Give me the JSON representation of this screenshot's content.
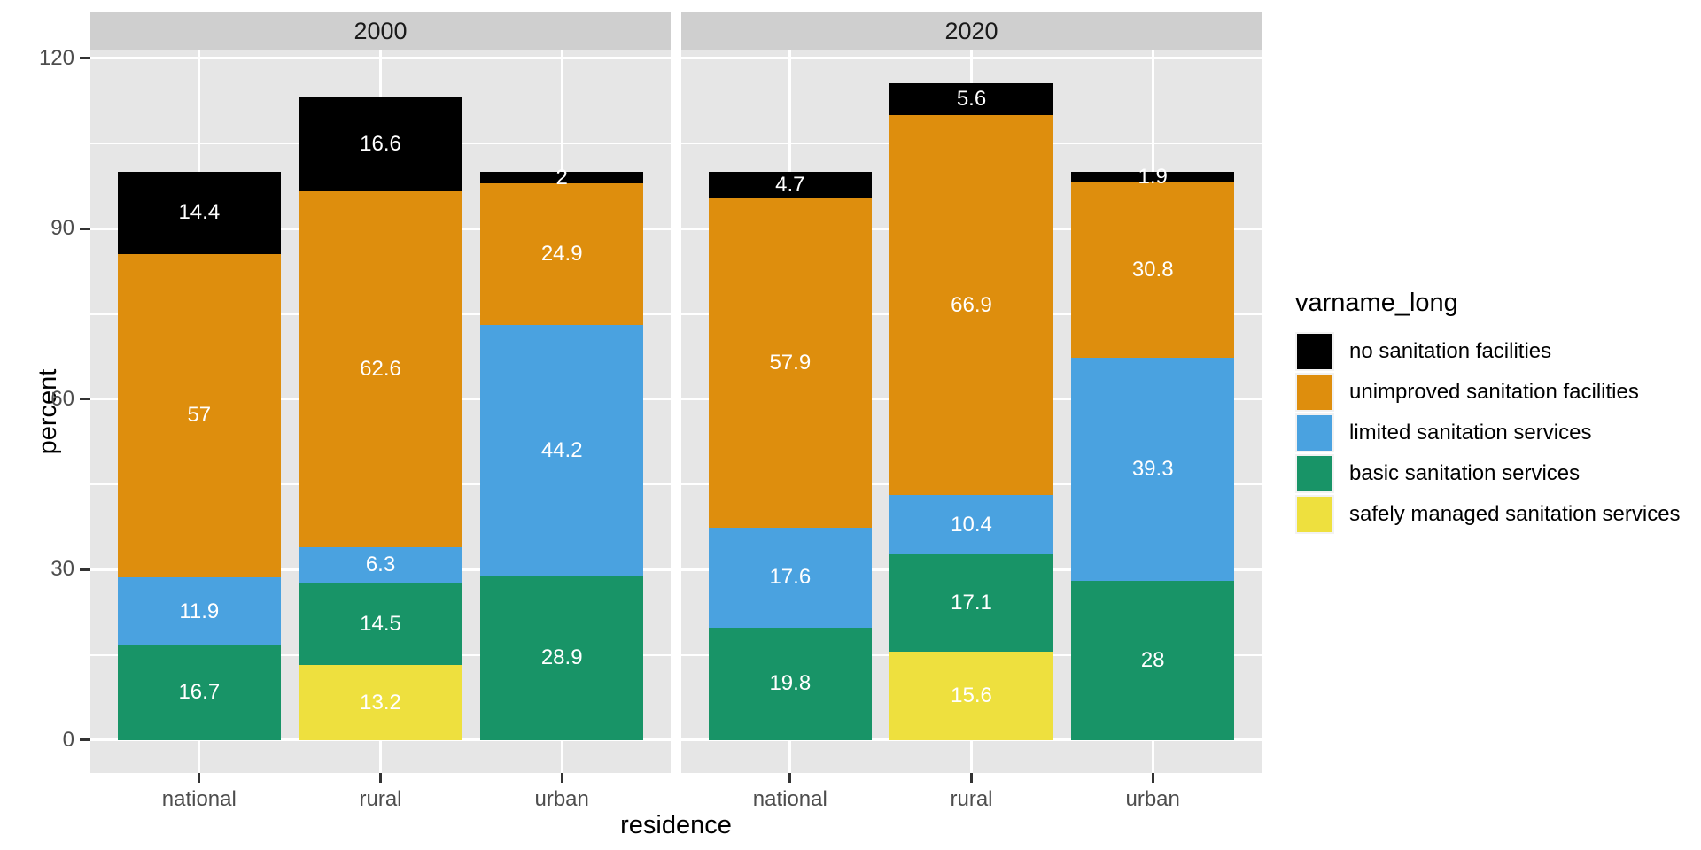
{
  "chart_data": {
    "type": "bar",
    "stacked": true,
    "facets": [
      "2000",
      "2020"
    ],
    "categories": [
      "national",
      "rural",
      "urban"
    ],
    "series": [
      {
        "name": "no sanitation facilities",
        "color": "#000000",
        "values": {
          "2000": [
            14.4,
            16.6,
            2
          ],
          "2020": [
            4.7,
            5.6,
            1.9
          ]
        }
      },
      {
        "name": "unimproved sanitation facilities",
        "color": "#de8e0d",
        "values": {
          "2000": [
            57,
            62.6,
            24.9
          ],
          "2020": [
            57.9,
            66.9,
            30.8
          ]
        }
      },
      {
        "name": "limited sanitation services",
        "color": "#4aa2e0",
        "values": {
          "2000": [
            11.9,
            6.3,
            44.2
          ],
          "2020": [
            17.6,
            10.4,
            39.3
          ]
        }
      },
      {
        "name": "basic sanitation services",
        "color": "#189467",
        "values": {
          "2000": [
            16.7,
            14.5,
            28.9
          ],
          "2020": [
            19.8,
            17.1,
            28
          ]
        }
      },
      {
        "name": "safely managed sanitation services",
        "color": "#eee03e",
        "values": {
          "2000": [
            null,
            13.2,
            null
          ],
          "2020": [
            null,
            15.6,
            null
          ]
        }
      }
    ],
    "stack_order_note": "series listed top-to-bottom of stack; bottom-to-top is reverse order",
    "x": {
      "label": "residence",
      "tick_labels": [
        "national",
        "rural",
        "urban"
      ]
    },
    "y": {
      "label": "percent",
      "ticks": [
        0,
        30,
        60,
        90,
        120
      ],
      "minor_ticks": [
        15,
        45,
        75,
        105
      ],
      "limits": [
        0,
        120
      ]
    },
    "legend": {
      "title": "varname_long",
      "position": "right"
    },
    "colors": {
      "panel_background": "#e6e6e6",
      "strip_background": "#cfcfcf",
      "gridline": "#ffffff",
      "tick_text": "#4d4d4d",
      "bar_label_text": "#ffffff"
    }
  }
}
